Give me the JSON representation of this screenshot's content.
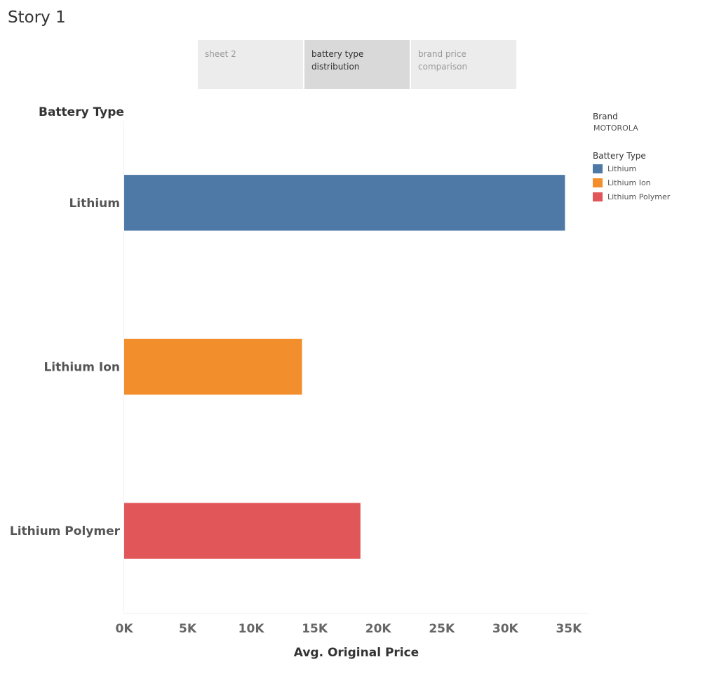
{
  "story": {
    "title": "Story 1"
  },
  "tabs": [
    {
      "line1": "sheet 2",
      "line2": "",
      "active": false
    },
    {
      "line1": "battery type",
      "line2": "distribution",
      "active": true
    },
    {
      "line1": "brand price",
      "line2": "comparison",
      "active": false
    }
  ],
  "legend": {
    "brand_title": "Brand",
    "brand_value": "MOTOROLA",
    "type_title": "Battery Type",
    "items": [
      {
        "label": "Lithium",
        "color": "#4e79a7"
      },
      {
        "label": "Lithium Ion",
        "color": "#f28e2b"
      },
      {
        "label": "Lithium Polymer",
        "color": "#e15759"
      }
    ]
  },
  "chart_data": {
    "type": "bar",
    "orientation": "horizontal",
    "row_header": "Battery Type",
    "categories": [
      "Lithium",
      "Lithium Ion",
      "Lithium Polymer"
    ],
    "values": [
      34700,
      14000,
      18600
    ],
    "colors": [
      "#4e79a7",
      "#f28e2b",
      "#e15759"
    ],
    "xlabel": "Avg. Original Price",
    "xlim": [
      0,
      36500
    ],
    "ticks": [
      0,
      5000,
      10000,
      15000,
      20000,
      25000,
      30000,
      35000
    ],
    "tick_labels": [
      "0K",
      "5K",
      "10K",
      "15K",
      "20K",
      "25K",
      "30K",
      "35K"
    ],
    "grid": false
  }
}
